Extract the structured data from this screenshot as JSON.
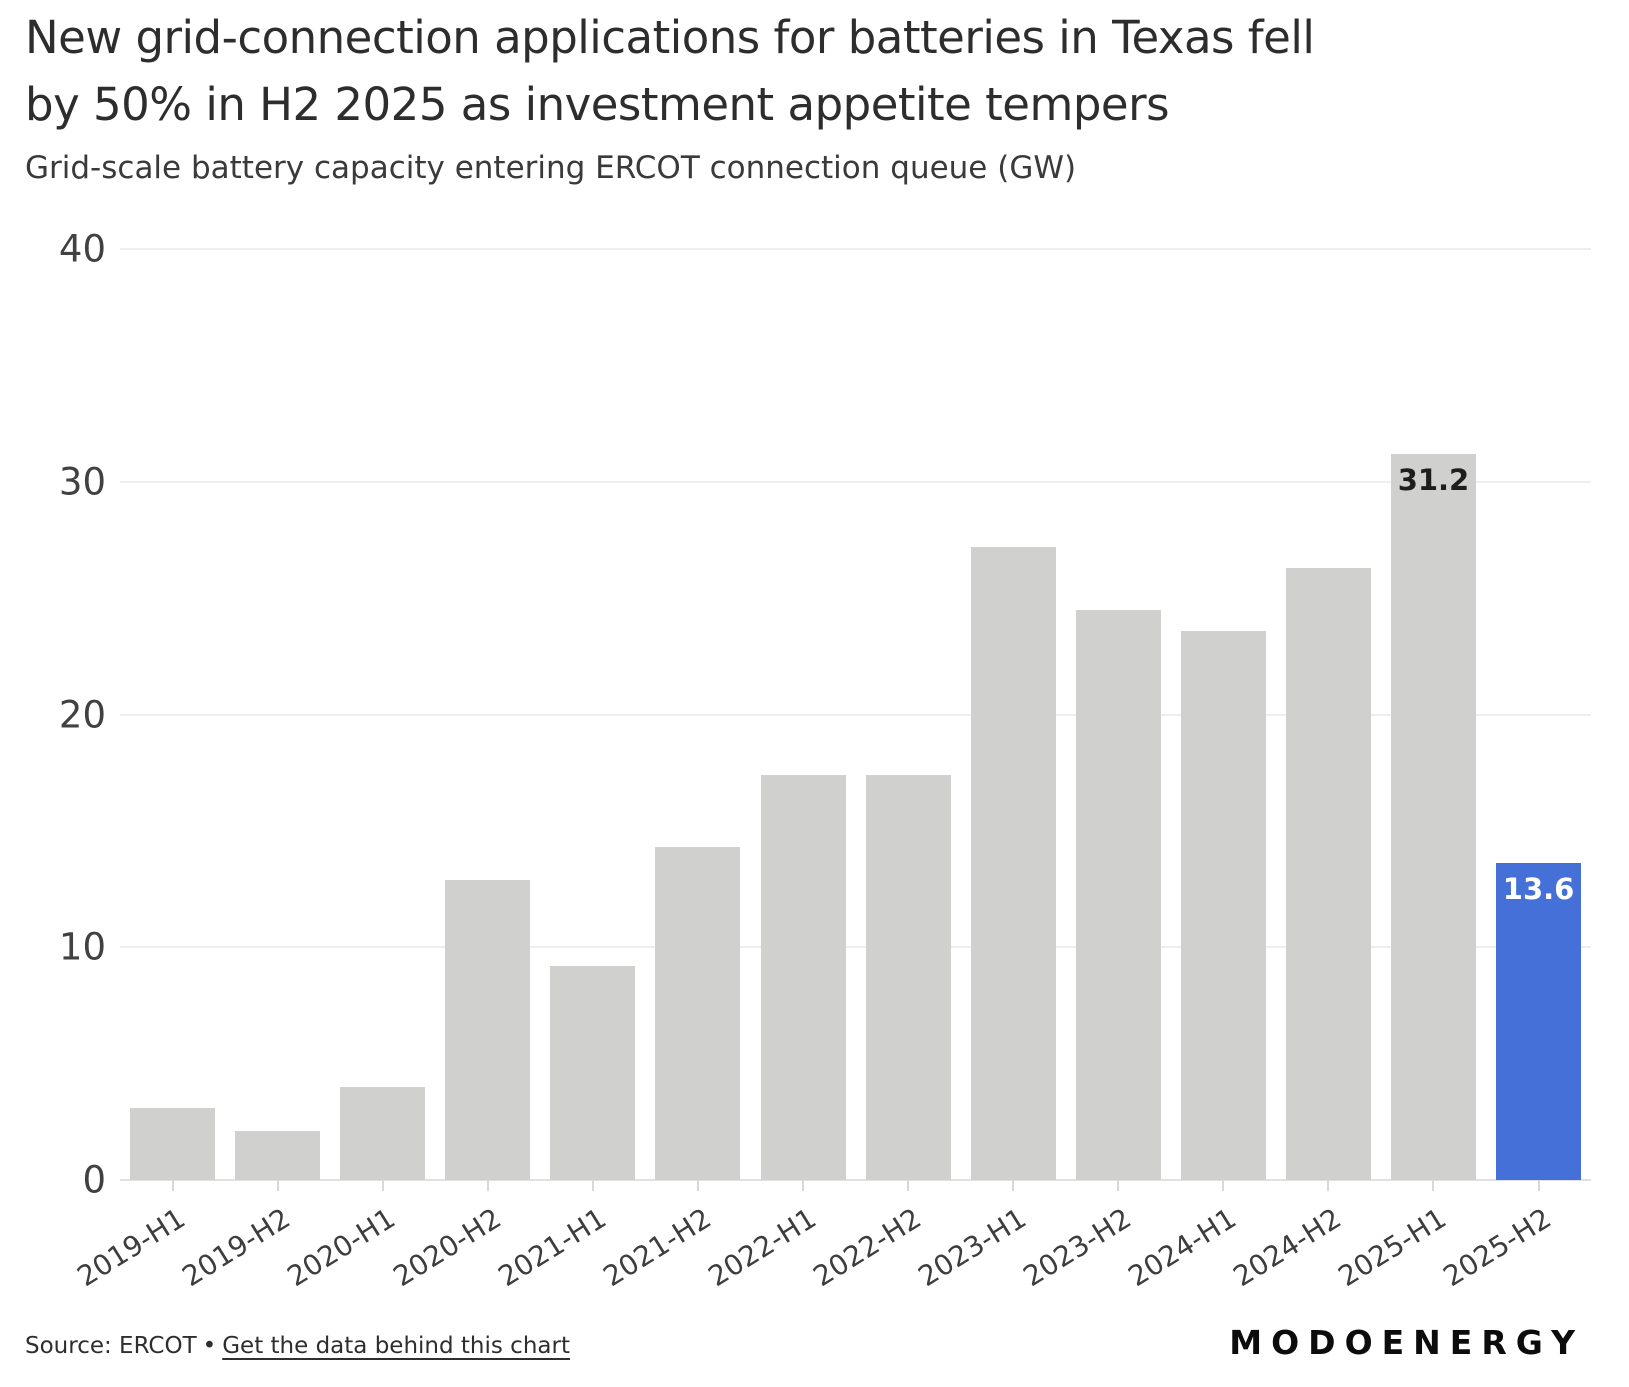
{
  "header": {
    "title": "New grid-connection applications for batteries in Texas fell\nby 50% in H2 2025 as investment appetite tempers",
    "subtitle": "Grid-scale battery capacity entering ERCOT connection queue (GW)"
  },
  "chart_data": {
    "type": "bar",
    "title": "New grid-connection applications for batteries in Texas fell by 50% in H2 2025 as investment appetite tempers",
    "subtitle": "Grid-scale battery capacity entering ERCOT connection queue (GW)",
    "unit": "GW",
    "categories": [
      "2019-H1",
      "2019-H2",
      "2020-H1",
      "2020-H2",
      "2021-H1",
      "2021-H2",
      "2022-H1",
      "2022-H2",
      "2023-H1",
      "2023-H2",
      "2024-H1",
      "2024-H2",
      "2025-H1",
      "2025-H2"
    ],
    "values": [
      3.1,
      2.1,
      4.0,
      12.9,
      9.2,
      14.3,
      17.4,
      17.4,
      27.2,
      24.5,
      23.6,
      26.3,
      31.2,
      13.6
    ],
    "highlight_index": 13,
    "annotations": [
      {
        "index": 12,
        "text": "31.2",
        "color": "#1e1e1e"
      },
      {
        "index": 13,
        "text": "13.6",
        "color": "#ffffff"
      }
    ],
    "ylim": [
      0,
      40
    ],
    "yticks": [
      0,
      10,
      20,
      30,
      40
    ],
    "grid": true,
    "legend": "none",
    "xlabel": "",
    "ylabel": ""
  },
  "colors": {
    "bar_default": "#d0d0ce",
    "bar_highlight": "#4470d8",
    "grid": "#eeeeee",
    "axis": "#e1e1e1"
  },
  "footer": {
    "source_text": "Source: ERCOT",
    "separator": "•",
    "link_label": "Get the data behind this chart",
    "brand": "MODOENERGY"
  }
}
